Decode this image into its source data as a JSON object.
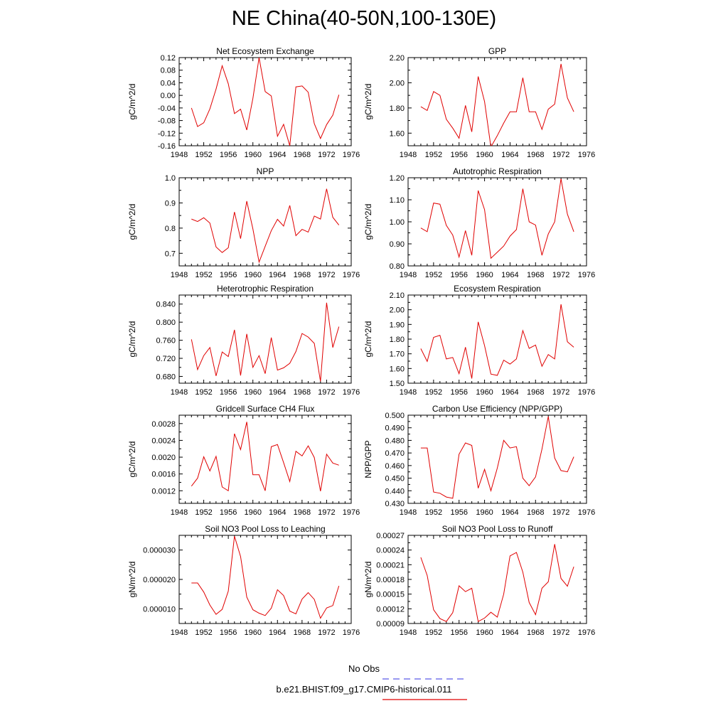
{
  "title": "NE China(40-50N,100-130E)",
  "legend": {
    "items": [
      {
        "label": "No Obs",
        "color": "#5a5ae6",
        "dashed": true
      },
      {
        "label": "b.e21.BHIST.f09_g17.CMIP6-historical.011",
        "color": "#e00000",
        "dashed": false
      }
    ]
  },
  "chart_data": [
    {
      "type": "line",
      "title": "Net Ecosystem Exchange",
      "ylabel": "gC/m^2/d",
      "xlabel": "",
      "xlim": [
        1948,
        1976
      ],
      "xticks": [
        "1948",
        "1952",
        "1956",
        "1960",
        "1964",
        "1968",
        "1972",
        "1976"
      ],
      "ylim": [
        -0.16,
        0.12
      ],
      "yticks": [
        "-0.16",
        "-0.12",
        "-0.08",
        "-0.04",
        "0.00",
        "0.04",
        "0.08",
        "0.12"
      ],
      "series": [
        {
          "color": "#e00000",
          "x": [
            1950,
            1951,
            1952,
            1953,
            1954,
            1955,
            1956,
            1957,
            1958,
            1959,
            1960,
            1961,
            1962,
            1963,
            1964,
            1965,
            1966,
            1967,
            1968,
            1969,
            1970,
            1971,
            1972,
            1973,
            1974
          ],
          "y": [
            -0.04,
            -0.099,
            -0.087,
            -0.043,
            0.02,
            0.094,
            0.037,
            -0.058,
            -0.044,
            -0.11,
            -0.01,
            0.12,
            0.012,
            -0.002,
            -0.13,
            -0.092,
            -0.16,
            0.027,
            0.03,
            0.01,
            -0.09,
            -0.137,
            -0.093,
            -0.063,
            0.002
          ]
        }
      ]
    },
    {
      "type": "line",
      "title": "GPP",
      "ylabel": "gC/m^2/d",
      "xlabel": "",
      "xlim": [
        1948,
        1976
      ],
      "xticks": [
        "1948",
        "1952",
        "1956",
        "1960",
        "1964",
        "1968",
        "1972",
        "1976"
      ],
      "ylim": [
        1.5,
        2.2
      ],
      "yticks": [
        "1.60",
        "1.80",
        "2.00",
        "2.20"
      ],
      "series": [
        {
          "color": "#e00000",
          "x": [
            1950,
            1951,
            1952,
            1953,
            1954,
            1955,
            1956,
            1957,
            1958,
            1959,
            1960,
            1961,
            1962,
            1963,
            1964,
            1965,
            1966,
            1967,
            1968,
            1969,
            1970,
            1971,
            1972,
            1973,
            1974
          ],
          "y": [
            1.81,
            1.78,
            1.93,
            1.9,
            1.71,
            1.64,
            1.56,
            1.82,
            1.61,
            2.05,
            1.85,
            1.49,
            1.58,
            1.68,
            1.77,
            1.77,
            2.04,
            1.77,
            1.77,
            1.63,
            1.79,
            1.83,
            2.15,
            1.88,
            1.77
          ]
        }
      ]
    },
    {
      "type": "line",
      "title": "NPP",
      "ylabel": "gC/m^2/d",
      "xlabel": "",
      "xlim": [
        1948,
        1976
      ],
      "xticks": [
        "1948",
        "1952",
        "1956",
        "1960",
        "1964",
        "1968",
        "1972",
        "1976"
      ],
      "ylim": [
        0.65,
        1.0
      ],
      "yticks": [
        "0.7",
        "0.8",
        "0.9",
        "1.0"
      ],
      "series": [
        {
          "color": "#e00000",
          "x": [
            1950,
            1951,
            1952,
            1953,
            1954,
            1955,
            1956,
            1957,
            1958,
            1959,
            1960,
            1961,
            1962,
            1963,
            1964,
            1965,
            1966,
            1967,
            1968,
            1969,
            1970,
            1971,
            1972,
            1973,
            1974
          ],
          "y": [
            0.836,
            0.826,
            0.841,
            0.82,
            0.725,
            0.703,
            0.722,
            0.864,
            0.758,
            0.907,
            0.797,
            0.665,
            0.728,
            0.79,
            0.835,
            0.808,
            0.89,
            0.77,
            0.795,
            0.784,
            0.848,
            0.836,
            0.956,
            0.843,
            0.812
          ]
        }
      ]
    },
    {
      "type": "line",
      "title": "Autotrophic Respiration",
      "ylabel": "gC/m^2/d",
      "xlabel": "",
      "xlim": [
        1948,
        1976
      ],
      "xticks": [
        "1948",
        "1952",
        "1956",
        "1960",
        "1964",
        "1968",
        "1972",
        "1976"
      ],
      "ylim": [
        0.8,
        1.2
      ],
      "yticks": [
        "0.80",
        "0.90",
        "1.00",
        "1.10",
        "1.20"
      ],
      "series": [
        {
          "color": "#e00000",
          "x": [
            1950,
            1951,
            1952,
            1953,
            1954,
            1955,
            1956,
            1957,
            1958,
            1959,
            1960,
            1961,
            1962,
            1963,
            1964,
            1965,
            1966,
            1967,
            1968,
            1969,
            1970,
            1971,
            1972,
            1973,
            1974
          ],
          "y": [
            0.972,
            0.955,
            1.085,
            1.08,
            0.984,
            0.94,
            0.84,
            0.96,
            0.848,
            1.142,
            1.055,
            0.835,
            0.862,
            0.89,
            0.935,
            0.965,
            1.15,
            1.0,
            0.985,
            0.848,
            0.945,
            1.0,
            1.195,
            1.035,
            0.955
          ]
        }
      ]
    },
    {
      "type": "line",
      "title": "Heterotrophic Respiration",
      "ylabel": "gC/m^2/d",
      "xlabel": "",
      "xlim": [
        1948,
        1976
      ],
      "xticks": [
        "1948",
        "1952",
        "1956",
        "1960",
        "1964",
        "1968",
        "1972",
        "1976"
      ],
      "ylim": [
        0.665,
        0.86
      ],
      "yticks": [
        "0.680",
        "0.720",
        "0.760",
        "0.800",
        "0.840"
      ],
      "series": [
        {
          "color": "#e00000",
          "x": [
            1950,
            1951,
            1952,
            1953,
            1954,
            1955,
            1956,
            1957,
            1958,
            1959,
            1960,
            1961,
            1962,
            1963,
            1964,
            1965,
            1966,
            1967,
            1968,
            1969,
            1970,
            1971,
            1972,
            1973,
            1974
          ],
          "y": [
            0.762,
            0.695,
            0.726,
            0.744,
            0.681,
            0.734,
            0.724,
            0.783,
            0.682,
            0.774,
            0.7,
            0.726,
            0.686,
            0.766,
            0.694,
            0.699,
            0.709,
            0.735,
            0.775,
            0.767,
            0.753,
            0.669,
            0.843,
            0.744,
            0.79
          ]
        }
      ]
    },
    {
      "type": "line",
      "title": "Ecosystem Respiration",
      "ylabel": "gC/m^2/d",
      "xlabel": "",
      "xlim": [
        1948,
        1976
      ],
      "xticks": [
        "1948",
        "1952",
        "1956",
        "1960",
        "1964",
        "1968",
        "1972",
        "1976"
      ],
      "ylim": [
        1.5,
        2.1
      ],
      "yticks": [
        "1.50",
        "1.60",
        "1.70",
        "1.80",
        "1.90",
        "2.00",
        "2.10"
      ],
      "series": [
        {
          "color": "#e00000",
          "x": [
            1950,
            1951,
            1952,
            1953,
            1954,
            1955,
            1956,
            1957,
            1958,
            1959,
            1960,
            1961,
            1962,
            1963,
            1964,
            1965,
            1966,
            1967,
            1968,
            1969,
            1970,
            1971,
            1972,
            1973,
            1974
          ],
          "y": [
            1.735,
            1.648,
            1.812,
            1.826,
            1.665,
            1.675,
            1.565,
            1.745,
            1.532,
            1.917,
            1.755,
            1.562,
            1.553,
            1.657,
            1.63,
            1.665,
            1.858,
            1.737,
            1.76,
            1.615,
            1.695,
            1.665,
            2.037,
            1.782,
            1.745
          ]
        }
      ]
    },
    {
      "type": "line",
      "title": "Gridcell Surface CH4 Flux",
      "ylabel": "gC/m^2/d",
      "xlabel": "",
      "xlim": [
        1948,
        1976
      ],
      "xticks": [
        "1948",
        "1952",
        "1956",
        "1960",
        "1964",
        "1968",
        "1972",
        "1976"
      ],
      "ylim": [
        0.0009,
        0.003
      ],
      "yticks": [
        "0.0012",
        "0.0016",
        "0.0020",
        "0.0024",
        "0.0028"
      ],
      "series": [
        {
          "color": "#e00000",
          "x": [
            1950,
            1951,
            1952,
            1953,
            1954,
            1955,
            1956,
            1957,
            1958,
            1959,
            1960,
            1961,
            1962,
            1963,
            1964,
            1965,
            1966,
            1967,
            1968,
            1969,
            1970,
            1971,
            1972,
            1973,
            1974
          ],
          "y": [
            0.00131,
            0.0015,
            0.00201,
            0.00167,
            0.00202,
            0.00129,
            0.0012,
            0.00256,
            0.00218,
            0.00284,
            0.00158,
            0.00158,
            0.0012,
            0.00225,
            0.0023,
            0.00187,
            0.00142,
            0.00214,
            0.00203,
            0.00227,
            0.00199,
            0.00119,
            0.00207,
            0.00186,
            0.00181
          ]
        }
      ]
    },
    {
      "type": "line",
      "title": "Carbon Use Efficiency (NPP/GPP)",
      "ylabel": "NPP/GPP",
      "xlabel": "",
      "xlim": [
        1948,
        1976
      ],
      "xticks": [
        "1948",
        "1952",
        "1956",
        "1960",
        "1964",
        "1968",
        "1972",
        "1976"
      ],
      "ylim": [
        0.43,
        0.5
      ],
      "yticks": [
        "0.430",
        "0.440",
        "0.450",
        "0.460",
        "0.470",
        "0.480",
        "0.490",
        "0.500"
      ],
      "series": [
        {
          "color": "#e00000",
          "x": [
            1950,
            1951,
            1952,
            1953,
            1954,
            1955,
            1956,
            1957,
            1958,
            1959,
            1960,
            1961,
            1962,
            1963,
            1964,
            1965,
            1966,
            1967,
            1968,
            1969,
            1970,
            1971,
            1972,
            1973,
            1974
          ],
          "y": [
            0.474,
            0.474,
            0.439,
            0.438,
            0.435,
            0.434,
            0.469,
            0.478,
            0.476,
            0.442,
            0.457,
            0.44,
            0.458,
            0.48,
            0.474,
            0.475,
            0.45,
            0.444,
            0.451,
            0.473,
            0.499,
            0.466,
            0.456,
            0.455,
            0.467
          ]
        }
      ]
    },
    {
      "type": "line",
      "title": "Soil NO3 Pool Loss to Leaching",
      "ylabel": "gN/m^2/d",
      "xlabel": "",
      "xlim": [
        1948,
        1976
      ],
      "xticks": [
        "1948",
        "1952",
        "1956",
        "1960",
        "1964",
        "1968",
        "1972",
        "1976"
      ],
      "ylim": [
        5e-06,
        3.5e-05
      ],
      "yticks": [
        "0.000010",
        "0.000020",
        "0.000030"
      ],
      "series": [
        {
          "color": "#e00000",
          "x": [
            1950,
            1951,
            1952,
            1953,
            1954,
            1955,
            1956,
            1957,
            1958,
            1959,
            1960,
            1961,
            1962,
            1963,
            1964,
            1965,
            1966,
            1967,
            1968,
            1969,
            1970,
            1971,
            1972,
            1973,
            1974
          ],
          "y": [
            1.88e-05,
            1.88e-05,
            1.57e-05,
            1.13e-05,
            8.1e-06,
            9.8e-06,
            1.6e-05,
            3.47e-05,
            2.78e-05,
            1.4e-05,
            9.7e-06,
            8.5e-06,
            7.7e-06,
            1.02e-05,
            1.65e-05,
            1.45e-05,
            9.2e-06,
            8.3e-06,
            1.33e-05,
            1.55e-05,
            1.32e-05,
            6.8e-06,
            1.03e-05,
            1.11e-05,
            1.78e-05
          ]
        }
      ]
    },
    {
      "type": "line",
      "title": "Soil NO3 Pool Loss to Runoff",
      "ylabel": "gN/m^2/d",
      "xlabel": "",
      "xlim": [
        1948,
        1976
      ],
      "xticks": [
        "1948",
        "1952",
        "1956",
        "1960",
        "1964",
        "1968",
        "1972",
        "1976"
      ],
      "ylim": [
        9e-05,
        0.00027
      ],
      "yticks": [
        "0.00009",
        "0.00012",
        "0.00015",
        "0.00018",
        "0.00021",
        "0.00024",
        "0.00027"
      ],
      "series": [
        {
          "color": "#e00000",
          "x": [
            1950,
            1951,
            1952,
            1953,
            1954,
            1955,
            1956,
            1957,
            1958,
            1959,
            1960,
            1961,
            1962,
            1963,
            1964,
            1965,
            1966,
            1967,
            1968,
            1969,
            1970,
            1971,
            1972,
            1973,
            1974
          ],
          "y": [
            0.000225,
            0.000188,
            0.000118,
            0.0001,
            9.4e-05,
            0.000112,
            0.000167,
            0.000155,
            0.000162,
            9.4e-05,
            0.000101,
            0.000113,
            0.000103,
            0.00015,
            0.000228,
            0.000235,
            0.000195,
            0.000133,
            0.000108,
            0.000162,
            0.000175,
            0.000252,
            0.000182,
            0.000166,
            0.000206
          ]
        }
      ]
    }
  ]
}
